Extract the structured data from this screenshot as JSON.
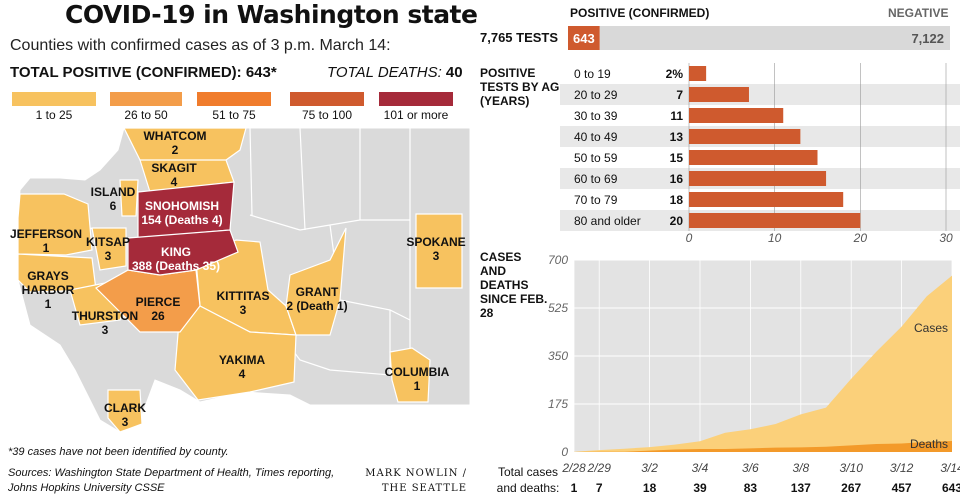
{
  "header": {
    "title": "COVID-19 in Washington state",
    "subtitle": "Counties with confirmed cases as of 3 p.m. March 14:",
    "total_positive": "TOTAL POSITIVE (CONFIRMED): 643*",
    "total_deaths_label": "TOTAL DEATHS:",
    "total_deaths_value": "40"
  },
  "legend": [
    {
      "label": "1 to 25",
      "color": "#f7c25f"
    },
    {
      "label": "26 to 50",
      "color": "#f39d4a"
    },
    {
      "label": "51 to 75",
      "color": "#f07c2c"
    },
    {
      "label": "75 to 100",
      "color": "#cf5a2e"
    },
    {
      "label": "101 or more",
      "color": "#a52a3a"
    }
  ],
  "map": {
    "counties": [
      {
        "name": "WHATCOM",
        "value": "2"
      },
      {
        "name": "SKAGIT",
        "value": "4"
      },
      {
        "name": "ISLAND",
        "value": "6"
      },
      {
        "name": "SNOHOMISH",
        "value": "154 (Deaths 4)"
      },
      {
        "name": "JEFFERSON",
        "value": "1"
      },
      {
        "name": "KITSAP",
        "value": "3"
      },
      {
        "name": "KING",
        "value": "388 (Deaths 35)"
      },
      {
        "name": "SPOKANE",
        "value": "3"
      },
      {
        "name": "GRAYS HARBOR",
        "value": "1"
      },
      {
        "name": "PIERCE",
        "value": "26"
      },
      {
        "name": "KITTITAS",
        "value": "3"
      },
      {
        "name": "GRANT",
        "value": "2 (Death 1)"
      },
      {
        "name": "THURSTON",
        "value": "3"
      },
      {
        "name": "YAKIMA",
        "value": "4"
      },
      {
        "name": "COLUMBIA",
        "value": "1"
      },
      {
        "name": "CLARK",
        "value": "3"
      }
    ]
  },
  "footer": {
    "footnote": "*39 cases have not been identified by county.",
    "sources": "Sources: Washington State Department of Health, Times reporting, Johns Hopkins University CSSE",
    "credit": "MARK NOWLIN / THE SEATTLE TIMES"
  },
  "tests": {
    "positive_label": "POSITIVE (CONFIRMED)",
    "negative_label": "NEGATIVE",
    "total_label": "7,765 TESTS",
    "positive_value": 643,
    "negative_value": 7122,
    "positive_text": "643",
    "negative_text": "7,122",
    "positive_color": "#cf5a2e",
    "negative_color": "#d9d9d9"
  },
  "chart_data": [
    {
      "type": "bar",
      "title": "POSITIVE TESTS BY AGE (YEARS)",
      "categories": [
        "0 to 19",
        "20 to 29",
        "30 to 39",
        "40 to 49",
        "50 to 59",
        "60 to 69",
        "70 to 79",
        "80 and older"
      ],
      "values": [
        2,
        7,
        11,
        13,
        15,
        16,
        18,
        20
      ],
      "value_labels": [
        "2%",
        "7",
        "11",
        "13",
        "15",
        "16",
        "18",
        "20"
      ],
      "xlim": [
        0,
        30
      ],
      "xticks": [
        "0",
        "10",
        "20",
        "30"
      ],
      "color": "#cf5a2e"
    },
    {
      "type": "area",
      "title": "CASES AND DEATHS SINCE FEB. 28",
      "x": [
        "2/28",
        "2/29",
        "3/1",
        "3/2",
        "3/3",
        "3/4",
        "3/5",
        "3/6",
        "3/7",
        "3/8",
        "3/9",
        "3/10",
        "3/11",
        "3/12",
        "3/13",
        "3/14"
      ],
      "xticks": [
        "2/28",
        "2/29",
        "3/2",
        "3/4",
        "3/6",
        "3/8",
        "3/10",
        "3/12",
        "3/14"
      ],
      "ylim": [
        0,
        700
      ],
      "yticks": [
        "0",
        "175",
        "350",
        "525",
        "700"
      ],
      "series": [
        {
          "name": "Cases",
          "color": "#fbd07a",
          "values": [
            1,
            7,
            12,
            18,
            27,
            39,
            70,
            83,
            102,
            137,
            162,
            267,
            366,
            457,
            568,
            643
          ]
        },
        {
          "name": "Deaths",
          "color": "#f39a2a",
          "values": [
            0,
            1,
            1,
            5,
            9,
            11,
            11,
            13,
            16,
            17,
            19,
            24,
            29,
            31,
            37,
            40
          ]
        }
      ],
      "totals_label": "Total cases and deaths:",
      "totals": [
        {
          "date": "2/28",
          "value": "1"
        },
        {
          "date": "2/29",
          "value": "7"
        },
        {
          "date": "3/2",
          "value": "18"
        },
        {
          "date": "3/4",
          "value": "39"
        },
        {
          "date": "3/6",
          "value": "83"
        },
        {
          "date": "3/8",
          "value": "137"
        },
        {
          "date": "3/10",
          "value": "267"
        },
        {
          "date": "3/12",
          "value": "457"
        },
        {
          "date": "3/14",
          "value": "643"
        }
      ]
    }
  ]
}
